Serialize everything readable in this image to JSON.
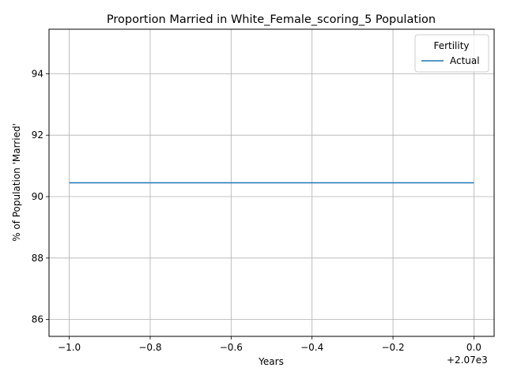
{
  "chart_data": {
    "type": "line",
    "title": "Proportion Married in White_Female_scoring_5 Population",
    "xlabel": "Years",
    "ylabel": "% of Population 'Married'",
    "x_offset_label": "+2.07e3",
    "xlim": [
      -1.05,
      0.05
    ],
    "ylim": [
      85.45,
      95.45
    ],
    "xticks": [
      -1.0,
      -0.8,
      -0.6,
      -0.4,
      -0.2,
      0.0
    ],
    "xtick_labels": [
      "−1.0",
      "−0.8",
      "−0.6",
      "−0.4",
      "−0.2",
      "0.0"
    ],
    "yticks": [
      86,
      88,
      90,
      92,
      94
    ],
    "ytick_labels": [
      "86",
      "88",
      "90",
      "92",
      "94"
    ],
    "grid": true,
    "legend": {
      "title": "Fertility",
      "position": "top-right"
    },
    "series": [
      {
        "name": "Actual",
        "color": "#1f77b4",
        "x": [
          -1.0,
          0.0
        ],
        "y": [
          90.45,
          90.45
        ]
      }
    ]
  }
}
